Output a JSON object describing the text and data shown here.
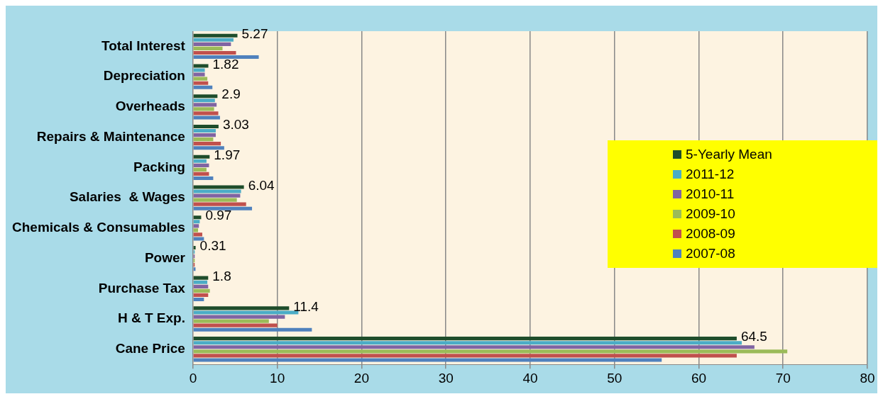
{
  "chart_data": {
    "type": "bar",
    "orientation": "horizontal",
    "categories": [
      "Total Interest",
      "Depreciation",
      "Overheads",
      "Repairs & Maintenance",
      "Packing",
      "Salaries  & Wages",
      "Chemicals & Consumables",
      "Power",
      "Purchase Tax",
      "H & T Exp.",
      "Cane Price"
    ],
    "series": [
      {
        "name": "5-Yearly Mean",
        "color": "#1e4d2b",
        "values": [
          5.27,
          1.82,
          2.9,
          3.03,
          1.97,
          6.04,
          0.97,
          0.31,
          1.8,
          11.4,
          64.5
        ],
        "value_labels": [
          "5.27",
          "1.82",
          "2.9",
          "3.03",
          "1.97",
          "6.04",
          "0.97",
          "0.31",
          "1.8",
          "11.4",
          "64.5"
        ]
      },
      {
        "name": "2011-12",
        "color": "#4bacc6",
        "values": [
          4.8,
          1.4,
          2.6,
          2.7,
          1.6,
          5.7,
          0.8,
          0.2,
          1.7,
          12.5,
          65.1
        ]
      },
      {
        "name": "2010-11",
        "color": "#8064a2",
        "values": [
          4.5,
          1.4,
          2.8,
          2.7,
          1.9,
          5.6,
          0.7,
          0.2,
          1.8,
          10.9,
          66.6
        ]
      },
      {
        "name": "2009-10",
        "color": "#9bbb59",
        "values": [
          3.5,
          1.7,
          2.5,
          2.4,
          1.6,
          5.2,
          0.6,
          0.2,
          2.0,
          9.0,
          70.5
        ]
      },
      {
        "name": "2008-09",
        "color": "#c0504d",
        "values": [
          5.1,
          1.8,
          3.0,
          3.3,
          1.9,
          6.3,
          1.1,
          0.2,
          1.8,
          10.0,
          64.5
        ]
      },
      {
        "name": "2007-08",
        "color": "#4f81bd",
        "values": [
          7.8,
          2.3,
          3.2,
          3.7,
          2.4,
          7.0,
          1.3,
          0.3,
          1.3,
          14.1,
          55.6
        ]
      }
    ],
    "xlim": [
      0,
      80
    ],
    "xticks": [
      0,
      10,
      20,
      30,
      40,
      50,
      60,
      70,
      80
    ],
    "grid": "x",
    "legend": "right"
  }
}
